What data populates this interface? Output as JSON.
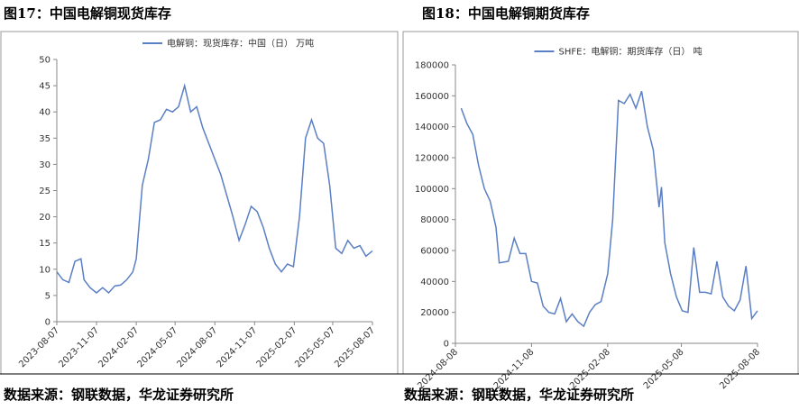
{
  "chart_data": [
    {
      "type": "line",
      "title": "图17：中国电解铜现货库存",
      "source": "数据来源：钢联数据，华龙证券研究所",
      "x": [
        "2023-08-07",
        "2023-08-21",
        "2023-09-04",
        "2023-09-18",
        "2023-10-02",
        "2023-10-09",
        "2023-10-23",
        "2023-11-07",
        "2023-11-21",
        "2023-12-05",
        "2023-12-19",
        "2024-01-02",
        "2024-01-16",
        "2024-01-30",
        "2024-02-07",
        "2024-02-21",
        "2024-03-06",
        "2024-03-20",
        "2024-04-03",
        "2024-04-17",
        "2024-05-01",
        "2024-05-15",
        "2024-05-29",
        "2024-06-12",
        "2024-06-26",
        "2024-07-10",
        "2024-07-24",
        "2024-08-07",
        "2024-08-21",
        "2024-09-04",
        "2024-09-18",
        "2024-10-02",
        "2024-10-16",
        "2024-10-30",
        "2024-11-13",
        "2024-11-27",
        "2024-12-11",
        "2024-12-25",
        "2025-01-08",
        "2025-01-22",
        "2025-02-05",
        "2025-02-19",
        "2025-03-05",
        "2025-03-19",
        "2025-04-02",
        "2025-04-16",
        "2025-04-30",
        "2025-05-14",
        "2025-05-28",
        "2025-06-11",
        "2025-06-25",
        "2025-07-09",
        "2025-07-23",
        "2025-08-07"
      ],
      "series": [
        {
          "name": "电解铜：现货库存：中国（日） 万吨",
          "color": "#5b7fc4",
          "values": [
            9.5,
            8,
            7.5,
            11.5,
            12,
            8,
            6.5,
            5.5,
            6.5,
            5.5,
            6.8,
            7,
            8,
            9.5,
            12,
            26,
            31,
            38,
            38.5,
            40.5,
            40,
            41,
            45,
            40,
            41,
            37,
            34,
            31,
            28,
            24,
            20,
            15.5,
            18.5,
            22,
            21,
            18,
            14,
            11,
            9.5,
            11,
            10.5,
            20,
            35,
            38.5,
            35,
            34,
            26,
            14,
            13,
            15.5,
            14,
            14.5,
            12.5,
            13.5
          ]
        }
      ],
      "ylim": [
        0,
        50
      ],
      "yticks": [
        0,
        5,
        10,
        15,
        20,
        25,
        30,
        35,
        40,
        45,
        50
      ],
      "xticks": [
        "2023-08-07",
        "2023-11-07",
        "2024-02-07",
        "2024-05-07",
        "2024-08-07",
        "2024-11-07",
        "2025-02-07",
        "2025-05-07",
        "2025-08-07"
      ]
    },
    {
      "type": "line",
      "title": "图18：中国电解铜期货库存",
      "source": "数据来源：钢联数据，华龙证券研究所",
      "x": [
        "2024-08-15",
        "2024-08-22",
        "2024-08-29",
        "2024-09-05",
        "2024-09-12",
        "2024-09-19",
        "2024-09-26",
        "2024-09-30",
        "2024-10-11",
        "2024-10-18",
        "2024-10-25",
        "2024-11-01",
        "2024-11-08",
        "2024-11-15",
        "2024-11-22",
        "2024-11-29",
        "2024-12-06",
        "2024-12-13",
        "2024-12-20",
        "2024-12-27",
        "2025-01-03",
        "2025-01-10",
        "2025-01-17",
        "2025-01-24",
        "2025-01-31",
        "2025-02-08",
        "2025-02-14",
        "2025-02-21",
        "2025-02-28",
        "2025-03-07",
        "2025-03-14",
        "2025-03-21",
        "2025-03-28",
        "2025-04-04",
        "2025-04-11",
        "2025-04-14",
        "2025-04-18",
        "2025-04-25",
        "2025-05-02",
        "2025-05-09",
        "2025-05-16",
        "2025-05-23",
        "2025-05-26",
        "2025-05-30",
        "2025-06-06",
        "2025-06-13",
        "2025-06-20",
        "2025-06-27",
        "2025-07-04",
        "2025-07-11",
        "2025-07-18",
        "2025-07-25",
        "2025-08-01",
        "2025-08-08"
      ],
      "series": [
        {
          "name": "SHFE：电解铜：期货库存（日） 吨",
          "color": "#5b7fc4",
          "values": [
            152000,
            142000,
            135000,
            115000,
            100000,
            92000,
            75000,
            52000,
            53000,
            68000,
            58000,
            58000,
            40000,
            39000,
            24000,
            20000,
            19000,
            29000,
            14000,
            19000,
            14000,
            11000,
            20000,
            25000,
            27000,
            45000,
            80000,
            157000,
            155000,
            161000,
            152000,
            163000,
            140000,
            125000,
            88000,
            101000,
            65000,
            45000,
            30000,
            21000,
            20000,
            62000,
            50000,
            33000,
            33000,
            32000,
            53000,
            30000,
            24000,
            21000,
            28000,
            50000,
            16000,
            21000
          ]
        }
      ],
      "ylim": [
        0,
        180000
      ],
      "yticks": [
        0,
        20000,
        40000,
        60000,
        80000,
        100000,
        120000,
        140000,
        160000,
        180000
      ],
      "xticks": [
        "2024-08-08",
        "2024-11-08",
        "2025-02-08",
        "2025-05-08",
        "2025-08-08"
      ]
    }
  ]
}
